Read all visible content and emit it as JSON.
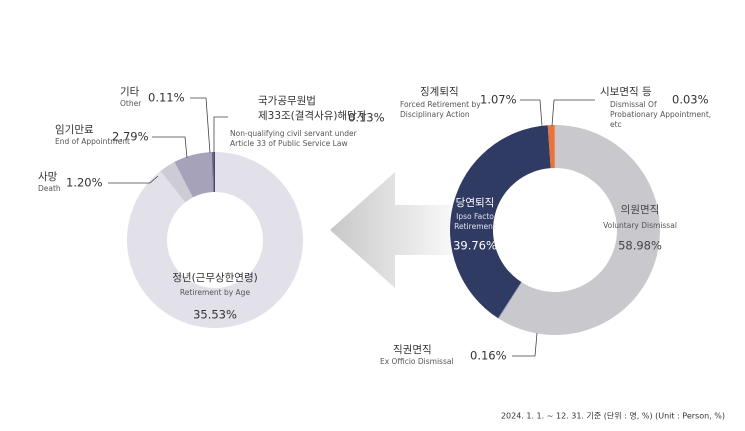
{
  "chart_data": [
    {
      "type": "donut",
      "categories": [
        "정년(근무상한연령)",
        "사망",
        "임기만료",
        "기타",
        "국가공무원법\n제33조(결격사유)해당자"
      ],
      "categories_en": [
        "Retirement by Age",
        "Death",
        "End of Appointment",
        "Other",
        "Non-qualifying civil servant under\nArticle 33 of Public Service Law"
      ],
      "values": [
        35.53,
        1.2,
        2.79,
        0.11,
        0.13
      ],
      "value_labels": [
        "35.53%",
        "1.20%",
        "2.79%",
        "0.11%",
        "0.13%"
      ],
      "colors": [
        "#e2e1e9",
        "#cdccd6",
        "#a5a2b9",
        "#6e6b88",
        "#4a4866"
      ]
    },
    {
      "type": "donut",
      "categories": [
        "의원면직",
        "직권면직",
        "당연퇴직",
        "징계퇴직",
        "시보면직 등"
      ],
      "categories_en": [
        "Voluntary Dismissal",
        "Ex Officio Dismissal",
        "Ipso Facto\nRetirement",
        "Forced Retirement by\nDisciplinary Action",
        "Dismissal Of\nProbationary Appointment,\netc"
      ],
      "values": [
        58.98,
        0.16,
        39.76,
        1.07,
        0.03
      ],
      "value_labels": [
        "58.98%",
        "0.16%",
        "39.76%",
        "1.07%",
        "0.03%"
      ],
      "colors": [
        "#c9c9cd",
        "#8d9cba",
        "#2f3b62",
        "#e8743b",
        "#f4a27e"
      ]
    }
  ],
  "footnote": "2024. 1. 1. ~ 12. 31. 기준 (단위 : 명, %) (Unit : Person, %)"
}
